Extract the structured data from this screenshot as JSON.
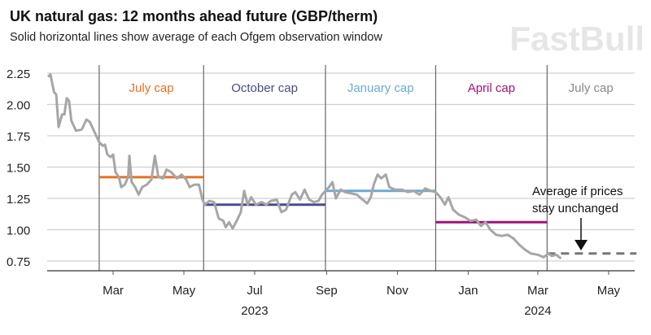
{
  "chart_data": {
    "type": "line",
    "title": "UK natural gas: 12 months ahead future (GBP/therm)",
    "subtitle": "Solid horizontal lines show average of each Ofgem observation window",
    "xlabel": "",
    "ylabel": "",
    "ylim": [
      0.75,
      2.25
    ],
    "yticks": [
      "2.25",
      "2.00",
      "1.75",
      "1.50",
      "1.25",
      "1.00",
      "0.75"
    ],
    "ytick_values": [
      2.25,
      2.0,
      1.75,
      1.5,
      1.25,
      1.0,
      0.75
    ],
    "xrange": [
      "2023-01-04",
      "2024-05-25"
    ],
    "xticks": [
      {
        "label": "Mar",
        "date": "2023-03-01"
      },
      {
        "label": "May",
        "date": "2023-05-01"
      },
      {
        "label": "Jul",
        "date": "2023-07-01"
      },
      {
        "label": "Sep",
        "date": "2023-09-01"
      },
      {
        "label": "Nov",
        "date": "2023-11-01"
      },
      {
        "label": "Jan",
        "date": "2024-01-01"
      },
      {
        "label": "Mar",
        "date": "2024-03-01"
      },
      {
        "label": "May",
        "date": "2024-05-01"
      }
    ],
    "year_labels": [
      {
        "label": "2023",
        "date": "2023-07-01"
      },
      {
        "label": "2024",
        "date": "2024-03-01"
      }
    ],
    "grid": true,
    "series_color": "#a6a6a6",
    "series": [
      {
        "name": "12 months ahead future",
        "points": [
          [
            "2023-01-04",
            2.22
          ],
          [
            "2023-01-06",
            2.24
          ],
          [
            "2023-01-09",
            2.1
          ],
          [
            "2023-01-11",
            2.08
          ],
          [
            "2023-01-13",
            1.82
          ],
          [
            "2023-01-16",
            1.92
          ],
          [
            "2023-01-18",
            1.92
          ],
          [
            "2023-01-20",
            2.05
          ],
          [
            "2023-01-22",
            2.03
          ],
          [
            "2023-01-24",
            1.87
          ],
          [
            "2023-01-28",
            1.79
          ],
          [
            "2023-02-02",
            1.8
          ],
          [
            "2023-02-06",
            1.88
          ],
          [
            "2023-02-09",
            1.86
          ],
          [
            "2023-02-14",
            1.76
          ],
          [
            "2023-02-17",
            1.7
          ],
          [
            "2023-02-20",
            1.67
          ],
          [
            "2023-02-22",
            1.68
          ],
          [
            "2023-02-24",
            1.6
          ],
          [
            "2023-02-27",
            1.58
          ],
          [
            "2023-03-01",
            1.6
          ],
          [
            "2023-03-03",
            1.46
          ],
          [
            "2023-03-06",
            1.42
          ],
          [
            "2023-03-08",
            1.34
          ],
          [
            "2023-03-11",
            1.36
          ],
          [
            "2023-03-14",
            1.42
          ],
          [
            "2023-03-15",
            1.59
          ],
          [
            "2023-03-17",
            1.38
          ],
          [
            "2023-03-20",
            1.34
          ],
          [
            "2023-03-23",
            1.28
          ],
          [
            "2023-03-26",
            1.34
          ],
          [
            "2023-03-30",
            1.36
          ],
          [
            "2023-04-03",
            1.4
          ],
          [
            "2023-04-06",
            1.59
          ],
          [
            "2023-04-09",
            1.42
          ],
          [
            "2023-04-13",
            1.41
          ],
          [
            "2023-04-16",
            1.48
          ],
          [
            "2023-04-20",
            1.46
          ],
          [
            "2023-04-25",
            1.41
          ],
          [
            "2023-04-29",
            1.44
          ],
          [
            "2023-05-03",
            1.4
          ],
          [
            "2023-05-06",
            1.34
          ],
          [
            "2023-05-10",
            1.36
          ],
          [
            "2023-05-14",
            1.36
          ],
          [
            "2023-05-17",
            1.24
          ],
          [
            "2023-05-19",
            1.2
          ],
          [
            "2023-05-23",
            1.23
          ],
          [
            "2023-05-27",
            1.22
          ],
          [
            "2023-05-31",
            1.09
          ],
          [
            "2023-06-04",
            1.07
          ],
          [
            "2023-06-06",
            1.02
          ],
          [
            "2023-06-09",
            1.06
          ],
          [
            "2023-06-12",
            1.01
          ],
          [
            "2023-06-16",
            1.08
          ],
          [
            "2023-06-19",
            1.14
          ],
          [
            "2023-06-22",
            1.31
          ],
          [
            "2023-06-25",
            1.2
          ],
          [
            "2023-06-28",
            1.26
          ],
          [
            "2023-07-02",
            1.2
          ],
          [
            "2023-07-07",
            1.22
          ],
          [
            "2023-07-11",
            1.2
          ],
          [
            "2023-07-15",
            1.23
          ],
          [
            "2023-07-20",
            1.24
          ],
          [
            "2023-07-24",
            1.14
          ],
          [
            "2023-07-28",
            1.16
          ],
          [
            "2023-08-02",
            1.28
          ],
          [
            "2023-08-05",
            1.3
          ],
          [
            "2023-08-09",
            1.24
          ],
          [
            "2023-08-13",
            1.32
          ],
          [
            "2023-08-17",
            1.24
          ],
          [
            "2023-08-21",
            1.22
          ],
          [
            "2023-08-25",
            1.23
          ],
          [
            "2023-08-28",
            1.28
          ],
          [
            "2023-08-31",
            1.31
          ],
          [
            "2023-09-03",
            1.34
          ],
          [
            "2023-09-06",
            1.38
          ],
          [
            "2023-09-09",
            1.25
          ],
          [
            "2023-09-13",
            1.32
          ],
          [
            "2023-09-17",
            1.3
          ],
          [
            "2023-09-22",
            1.29
          ],
          [
            "2023-09-27",
            1.28
          ],
          [
            "2023-10-02",
            1.24
          ],
          [
            "2023-10-06",
            1.21
          ],
          [
            "2023-10-09",
            1.26
          ],
          [
            "2023-10-12",
            1.37
          ],
          [
            "2023-10-15",
            1.44
          ],
          [
            "2023-10-18",
            1.41
          ],
          [
            "2023-10-22",
            1.44
          ],
          [
            "2023-10-25",
            1.34
          ],
          [
            "2023-10-30",
            1.32
          ],
          [
            "2023-11-05",
            1.32
          ],
          [
            "2023-11-10",
            1.3
          ],
          [
            "2023-11-15",
            1.31
          ],
          [
            "2023-11-20",
            1.28
          ],
          [
            "2023-11-25",
            1.33
          ],
          [
            "2023-11-30",
            1.31
          ],
          [
            "2023-12-04",
            1.3
          ],
          [
            "2023-12-08",
            1.26
          ],
          [
            "2023-12-12",
            1.2
          ],
          [
            "2023-12-15",
            1.26
          ],
          [
            "2023-12-19",
            1.16
          ],
          [
            "2023-12-24",
            1.12
          ],
          [
            "2023-12-29",
            1.1
          ],
          [
            "2024-01-03",
            1.07
          ],
          [
            "2024-01-08",
            1.08
          ],
          [
            "2024-01-12",
            1.03
          ],
          [
            "2024-01-16",
            1.06
          ],
          [
            "2024-01-20",
            1.0
          ],
          [
            "2024-01-25",
            0.96
          ],
          [
            "2024-01-30",
            0.95
          ],
          [
            "2024-02-04",
            0.96
          ],
          [
            "2024-02-09",
            0.93
          ],
          [
            "2024-02-14",
            0.88
          ],
          [
            "2024-02-19",
            0.84
          ],
          [
            "2024-02-24",
            0.81
          ],
          [
            "2024-03-01",
            0.8
          ],
          [
            "2024-03-06",
            0.78
          ],
          [
            "2024-03-10",
            0.81
          ],
          [
            "2024-03-13",
            0.79
          ],
          [
            "2024-03-17",
            0.8
          ],
          [
            "2024-03-21",
            0.77
          ]
        ]
      }
    ],
    "windows": [
      {
        "label": "July cap",
        "start": "2023-02-17",
        "end": "2023-05-18",
        "average": 1.42,
        "color": "#e8701e"
      },
      {
        "label": "October cap",
        "start": "2023-05-18",
        "end": "2023-08-31",
        "average": 1.2,
        "color": "#4b4b8b"
      },
      {
        "label": "January cap",
        "start": "2023-08-31",
        "end": "2023-12-04",
        "average": 1.31,
        "color": "#6aaad6"
      },
      {
        "label": "April cap",
        "start": "2023-12-04",
        "end": "2024-03-09",
        "average": 1.06,
        "color": "#a01374"
      },
      {
        "label": "July cap",
        "start": "2024-03-09",
        "end": "2024-05-25",
        "average": 0.81,
        "color": "#888888",
        "dashed": true
      }
    ],
    "annotation": "Average if prices stay unchanged",
    "annotation_lines": [
      "Average if prices",
      "stay unchanged"
    ]
  },
  "watermark": "FastBull"
}
